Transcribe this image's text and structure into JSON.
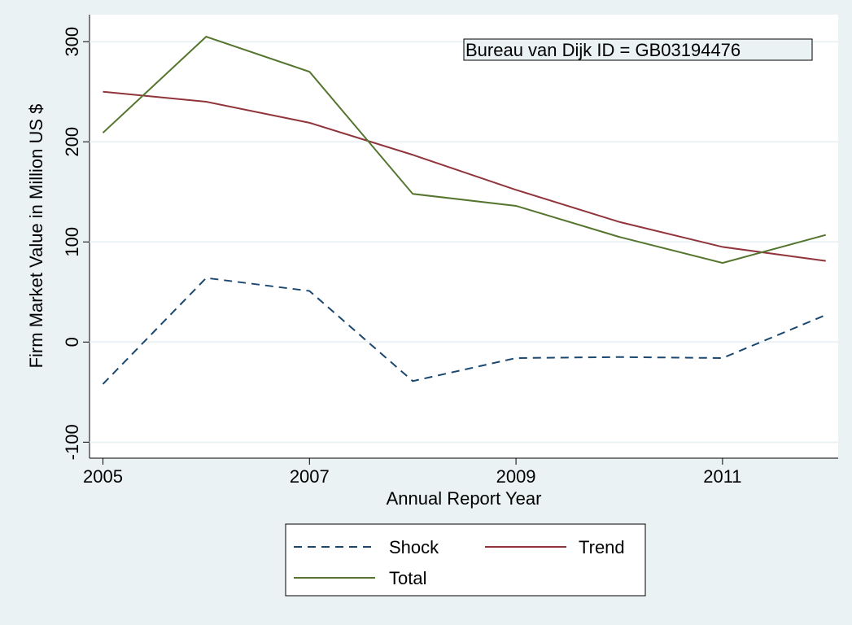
{
  "chart_data": {
    "type": "line",
    "x": [
      2005,
      2006,
      2007,
      2008,
      2009,
      2010,
      2011,
      2012
    ],
    "series": [
      {
        "name": "Shock",
        "color": "#1a476f",
        "style": "dashed",
        "values": [
          -42,
          64,
          51,
          -39,
          -16,
          -15,
          -16,
          27
        ]
      },
      {
        "name": "Trend",
        "color": "#90353b",
        "style": "solid",
        "values": [
          250,
          240,
          219,
          187,
          152,
          120,
          95,
          81
        ]
      },
      {
        "name": "Total",
        "color": "#55752f",
        "style": "solid",
        "values": [
          209,
          305,
          270,
          148,
          136,
          105,
          79,
          107
        ]
      }
    ],
    "xlabel": "Annual Report Year",
    "ylabel": "Firm Market Value in Million US $",
    "annotation": "Bureau van Dijk ID = GB03194476",
    "xlim": [
      2004.87,
      2012.12
    ],
    "xticks": [
      2005,
      2007,
      2009,
      2011
    ],
    "ylim": [
      -116,
      327
    ],
    "yticks": [
      -100,
      0,
      100,
      200,
      300
    ],
    "grid": true
  }
}
